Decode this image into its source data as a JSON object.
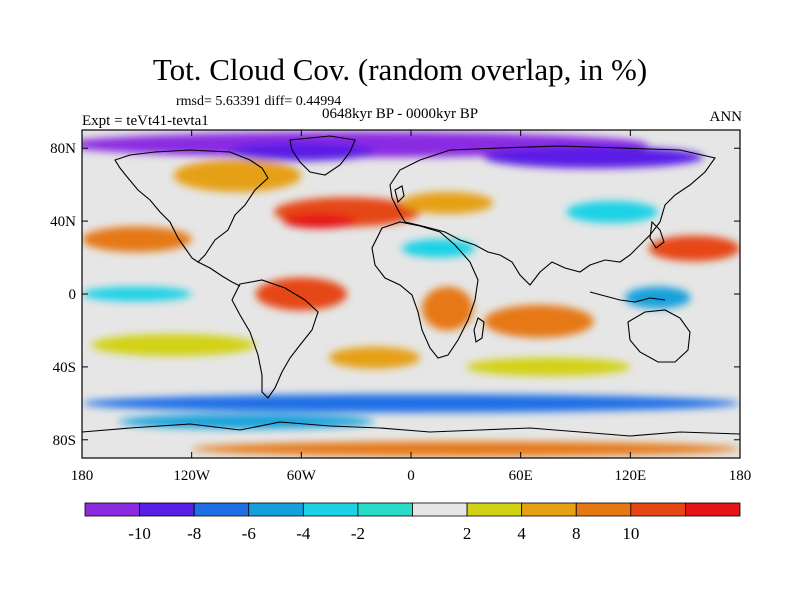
{
  "title": "Tot. Cloud Cov. (random overlap, in %)",
  "stats": "rmsd= 5.63391  diff= 0.44994",
  "period": "0648kyr BP - 0000kyr BP",
  "experiment": "Expt = teVt41-tevta1",
  "season": "ANN",
  "map": {
    "projection": "cylindrical-equidistant",
    "lon_range": [
      -180,
      180
    ],
    "lat_range": [
      -90,
      90
    ],
    "x_ticks": [
      {
        "value": -180,
        "label": "180"
      },
      {
        "value": -120,
        "label": "120W"
      },
      {
        "value": -60,
        "label": "60W"
      },
      {
        "value": 0,
        "label": "0"
      },
      {
        "value": 60,
        "label": "60E"
      },
      {
        "value": 120,
        "label": "120E"
      },
      {
        "value": 180,
        "label": "180"
      }
    ],
    "y_ticks": [
      {
        "value": 80,
        "label": "80N"
      },
      {
        "value": 40,
        "label": "40N"
      },
      {
        "value": 0,
        "label": "0"
      },
      {
        "value": -40,
        "label": "40S"
      },
      {
        "value": -80,
        "label": "80S"
      }
    ],
    "background_color": "#e6e6e6",
    "coastline_color": "#000000"
  },
  "colorbar": {
    "colors": [
      "#8a2be2",
      "#5a1ee6",
      "#1e6ee6",
      "#14a0dc",
      "#1ed2e6",
      "#28dcc8",
      "#e6e6e6",
      "#d2d214",
      "#e6a014",
      "#e67814",
      "#e64614",
      "#e61414"
    ],
    "labels": [
      "-10",
      "-8",
      "-6",
      "-4",
      "-2",
      "2",
      "4",
      "8",
      "10"
    ],
    "label_edges": [
      1,
      2,
      3,
      4,
      5,
      7,
      8,
      9,
      10
    ]
  },
  "field_patches": [
    {
      "name": "arctic",
      "lon": -30,
      "lat": 82,
      "rx": 160,
      "ry": 7,
      "color": "#8a2be2"
    },
    {
      "name": "greenland",
      "lon": -60,
      "lat": 78,
      "rx": 40,
      "ry": 5,
      "color": "#5a1ee6"
    },
    {
      "name": "siberia",
      "lon": 100,
      "lat": 75,
      "rx": 60,
      "ry": 6,
      "color": "#5a1ee6"
    },
    {
      "name": "canada",
      "lon": -95,
      "lat": 65,
      "rx": 35,
      "ry": 9,
      "color": "#e6a014"
    },
    {
      "name": "n-atlantic",
      "lon": -35,
      "lat": 45,
      "rx": 40,
      "ry": 8,
      "color": "#e64614"
    },
    {
      "name": "n-atlantic-core",
      "lon": -50,
      "lat": 40,
      "rx": 20,
      "ry": 4,
      "color": "#e61414"
    },
    {
      "name": "n-pacific-w",
      "lon": -150,
      "lat": 30,
      "rx": 30,
      "ry": 7,
      "color": "#e67814"
    },
    {
      "name": "n-pacific-e",
      "lon": 155,
      "lat": 25,
      "rx": 25,
      "ry": 7,
      "color": "#e64614"
    },
    {
      "name": "south-america",
      "lon": -60,
      "lat": 0,
      "rx": 25,
      "ry": 9,
      "color": "#e64614"
    },
    {
      "name": "africa",
      "lon": 20,
      "lat": -8,
      "rx": 14,
      "ry": 12,
      "color": "#e67814"
    },
    {
      "name": "indian-ocean",
      "lon": 70,
      "lat": -15,
      "rx": 30,
      "ry": 9,
      "color": "#e67814"
    },
    {
      "name": "s-pacific",
      "lon": -130,
      "lat": -28,
      "rx": 45,
      "ry": 6,
      "color": "#d2d214"
    },
    {
      "name": "s-indian",
      "lon": 75,
      "lat": -40,
      "rx": 45,
      "ry": 5,
      "color": "#d2d214"
    },
    {
      "name": "s-atlantic",
      "lon": -20,
      "lat": -35,
      "rx": 25,
      "ry": 6,
      "color": "#e6a014"
    },
    {
      "name": "southern-ocean",
      "lon": 0,
      "lat": -60,
      "rx": 180,
      "ry": 5,
      "color": "#1e6ee6"
    },
    {
      "name": "southern-ocean-2",
      "lon": -90,
      "lat": -70,
      "rx": 70,
      "ry": 4,
      "color": "#14a0dc"
    },
    {
      "name": "antarctic",
      "lon": 30,
      "lat": -85,
      "rx": 150,
      "ry": 4,
      "color": "#e67814"
    },
    {
      "name": "tropical-pacific",
      "lon": -150,
      "lat": 0,
      "rx": 30,
      "ry": 4,
      "color": "#1ed2e6"
    },
    {
      "name": "west-pacific",
      "lon": 135,
      "lat": -2,
      "rx": 18,
      "ry": 6,
      "color": "#14a0dc"
    },
    {
      "name": "europe",
      "lon": 20,
      "lat": 50,
      "rx": 25,
      "ry": 6,
      "color": "#e6a014"
    },
    {
      "name": "n-africa",
      "lon": 15,
      "lat": 25,
      "rx": 20,
      "ry": 5,
      "color": "#1ed2e6"
    },
    {
      "name": "asia-east",
      "lon": 110,
      "lat": 45,
      "rx": 25,
      "ry": 6,
      "color": "#1ed2e6"
    }
  ]
}
